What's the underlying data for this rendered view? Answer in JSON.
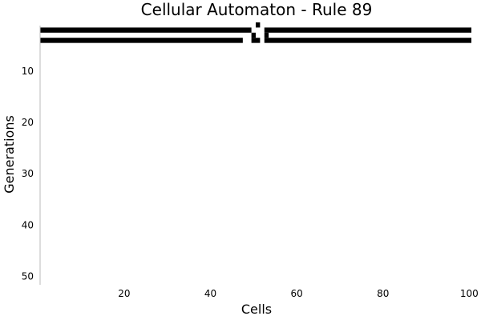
{
  "chart_data": {
    "type": "heatmap",
    "title": "Cellular Automaton - Rule 89",
    "xlabel": "Cells",
    "ylabel": "Generations",
    "xlim": [
      0.5,
      100.5
    ],
    "ylim": [
      0.5,
      51.5
    ],
    "y_inverted": true,
    "x_ticks": [
      20,
      40,
      60,
      80,
      100
    ],
    "y_ticks": [
      10,
      20,
      30,
      40,
      50
    ],
    "grid": false,
    "cell_color": "#000000",
    "background_color": "#ffffff",
    "rows": [
      {
        "generation": 1,
        "alive": [
          51
        ]
      },
      {
        "generation": 2,
        "alive": [
          [
            1,
            49
          ],
          [
            53,
            100
          ]
        ]
      },
      {
        "generation": 3,
        "alive": [
          50,
          53
        ]
      },
      {
        "generation": 4,
        "alive": [
          [
            1,
            47
          ],
          [
            50,
            51
          ],
          [
            53,
            100
          ]
        ]
      }
    ]
  }
}
